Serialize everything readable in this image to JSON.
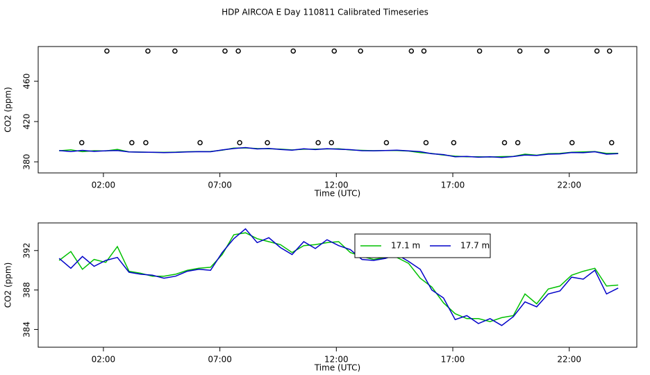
{
  "title": "HDP AIRCOA E  Day 110811  Calibrated Timeseries",
  "chart_data": [
    {
      "type": "line",
      "xlabel": "Time (UTC)",
      "ylabel": "CO2 (ppm)",
      "x": [
        0.1,
        0.6,
        1.1,
        1.6,
        2.1,
        2.6,
        3.1,
        3.6,
        4.1,
        4.6,
        5.1,
        5.6,
        6.1,
        6.6,
        7.1,
        7.6,
        8.1,
        8.6,
        9.1,
        9.6,
        10.1,
        10.6,
        11.1,
        11.6,
        12.1,
        12.6,
        13.1,
        13.6,
        14.1,
        14.6,
        15.1,
        15.6,
        16.1,
        16.6,
        17.1,
        17.6,
        18.1,
        18.6,
        19.1,
        19.6,
        20.1,
        20.6,
        21.1,
        21.6,
        22.1,
        22.6,
        23.1,
        23.6,
        24.1
      ],
      "series": [
        {
          "name": "17.1 m",
          "color": "#00c000",
          "values": [
            391.0,
            391.9,
            390.1,
            391.1,
            390.8,
            392.4,
            389.9,
            389.7,
            389.4,
            389.4,
            389.6,
            390.0,
            390.2,
            390.3,
            391.6,
            393.6,
            393.8,
            393.2,
            392.9,
            392.6,
            391.8,
            392.5,
            392.6,
            392.8,
            392.9,
            391.8,
            391.4,
            391.1,
            391.3,
            391.3,
            390.7,
            389.2,
            388.3,
            386.7,
            385.6,
            385.1,
            385.1,
            384.8,
            385.2,
            385.4,
            387.6,
            386.6,
            388.1,
            388.4,
            389.5,
            389.9,
            390.2,
            388.4,
            388.5
          ]
        },
        {
          "name": "17.7 m",
          "color": "#0000c8",
          "values": [
            391.2,
            390.2,
            391.4,
            390.4,
            391.0,
            391.3,
            389.8,
            389.6,
            389.5,
            389.2,
            389.4,
            389.9,
            390.1,
            390.0,
            391.8,
            393.2,
            394.2,
            392.8,
            393.3,
            392.3,
            391.6,
            392.9,
            392.2,
            393.1,
            392.5,
            392.1,
            391.1,
            391.0,
            391.2,
            391.6,
            390.9,
            390.1,
            388.0,
            387.2,
            385.0,
            385.4,
            384.6,
            385.1,
            384.4,
            385.3,
            386.8,
            386.3,
            387.6,
            387.9,
            389.3,
            389.1,
            390.0,
            387.6,
            388.2
          ]
        },
        {
          "type": "scatter",
          "color": "#000000",
          "x": [
            2.15,
            3.91,
            5.07,
            7.22,
            7.79,
            10.15,
            11.91,
            13.04,
            15.22,
            15.76,
            18.15,
            19.88,
            21.04,
            23.19,
            23.73,
            1.07,
            3.22,
            3.82,
            6.15,
            7.85,
            9.04,
            11.22,
            11.79,
            14.15,
            15.85,
            17.04,
            19.22,
            19.79,
            22.12,
            23.82
          ],
          "values": [
            490,
            490,
            490,
            490,
            490,
            490,
            490,
            490,
            490,
            490,
            490,
            490,
            490,
            490,
            490,
            399,
            399,
            399,
            399,
            399,
            399,
            399,
            399,
            399,
            399,
            399,
            399,
            399,
            399,
            399
          ]
        }
      ],
      "xlim": [
        -0.8,
        24.9
      ],
      "xticks": [
        {
          "value": 2,
          "label": "02:00"
        },
        {
          "value": 7,
          "label": "07:00"
        },
        {
          "value": 12,
          "label": "12:00"
        },
        {
          "value": 17,
          "label": "17:00"
        },
        {
          "value": 22,
          "label": "22:00"
        }
      ],
      "ylim": [
        369,
        494.5
      ],
      "yticks": [
        380,
        420,
        460
      ],
      "legend": false
    },
    {
      "type": "line",
      "xlabel": "Time (UTC)",
      "ylabel": "CO2 (ppm)",
      "x": [
        0.1,
        0.6,
        1.1,
        1.6,
        2.1,
        2.6,
        3.1,
        3.6,
        4.1,
        4.6,
        5.1,
        5.6,
        6.1,
        6.6,
        7.1,
        7.6,
        8.1,
        8.6,
        9.1,
        9.6,
        10.1,
        10.6,
        11.1,
        11.6,
        12.1,
        12.6,
        13.1,
        13.6,
        14.1,
        14.6,
        15.1,
        15.6,
        16.1,
        16.6,
        17.1,
        17.6,
        18.1,
        18.6,
        19.1,
        19.6,
        20.1,
        20.6,
        21.1,
        21.6,
        22.1,
        22.6,
        23.1,
        23.6,
        24.1
      ],
      "series": [
        {
          "name": "17.1 m",
          "color": "#00c000",
          "values": [
            391.0,
            391.9,
            390.1,
            391.1,
            390.8,
            392.4,
            389.9,
            389.7,
            389.4,
            389.4,
            389.6,
            390.0,
            390.2,
            390.3,
            391.6,
            393.6,
            393.8,
            393.2,
            392.9,
            392.6,
            391.8,
            392.5,
            392.6,
            392.8,
            392.9,
            391.8,
            391.4,
            391.1,
            391.3,
            391.3,
            390.7,
            389.2,
            388.3,
            386.7,
            385.6,
            385.1,
            385.1,
            384.8,
            385.2,
            385.4,
            387.6,
            386.6,
            388.1,
            388.4,
            389.5,
            389.9,
            390.2,
            388.4,
            388.5
          ]
        },
        {
          "name": "17.7 m",
          "color": "#0000c8",
          "values": [
            391.2,
            390.2,
            391.4,
            390.4,
            391.0,
            391.3,
            389.8,
            389.6,
            389.5,
            389.2,
            389.4,
            389.9,
            390.1,
            390.0,
            391.8,
            393.2,
            394.2,
            392.8,
            393.3,
            392.3,
            391.6,
            392.9,
            392.2,
            393.1,
            392.5,
            392.1,
            391.1,
            391.0,
            391.2,
            391.6,
            390.9,
            390.1,
            388.0,
            387.2,
            385.0,
            385.4,
            384.6,
            385.1,
            384.4,
            385.3,
            386.8,
            386.3,
            387.6,
            387.9,
            389.3,
            389.1,
            390.0,
            387.6,
            388.2
          ]
        }
      ],
      "xlim": [
        -0.8,
        24.9
      ],
      "xticks": [
        {
          "value": 2,
          "label": "02:00"
        },
        {
          "value": 7,
          "label": "07:00"
        },
        {
          "value": 12,
          "label": "12:00"
        },
        {
          "value": 17,
          "label": "17:00"
        },
        {
          "value": 22,
          "label": "22:00"
        }
      ],
      "ylim": [
        382.2,
        394.8
      ],
      "yticks": [
        384,
        388,
        392
      ],
      "legend": "top"
    }
  ]
}
